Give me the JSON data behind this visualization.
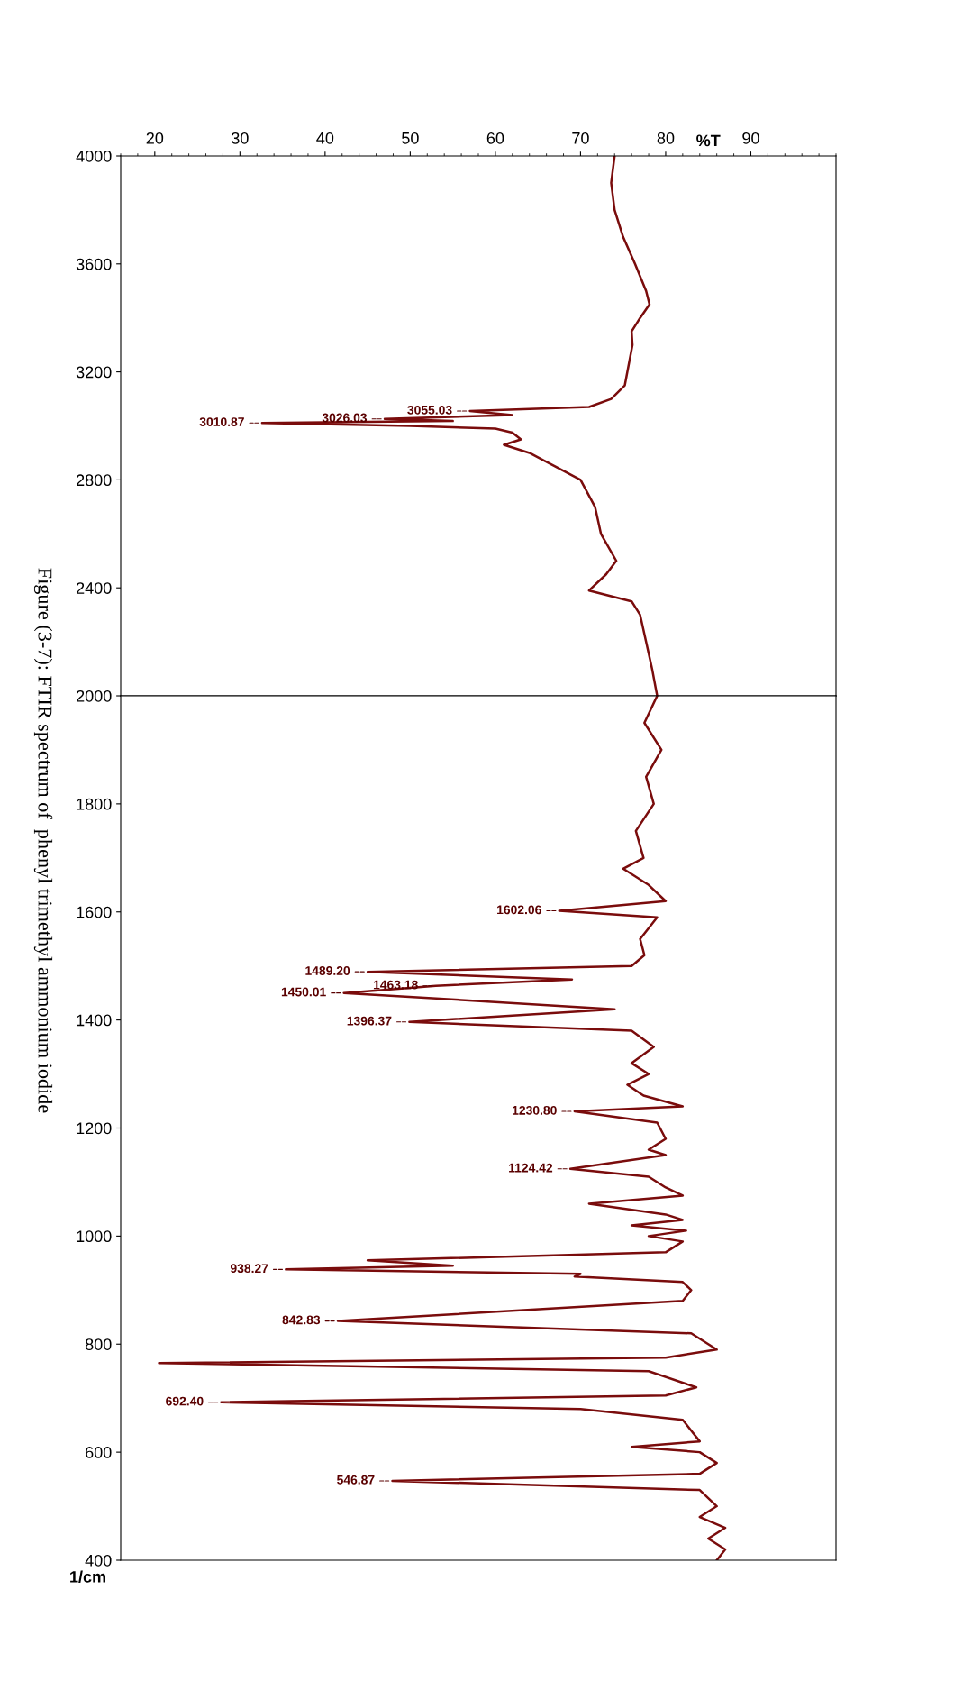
{
  "chart_data": [
    {
      "type": "line",
      "xlabel": "%T",
      "ylim": [
        2000,
        4000
      ],
      "yticks": [
        4000,
        3600,
        3200,
        2800,
        2400
      ],
      "xlim": [
        16,
        100
      ],
      "xticks": [
        20,
        30,
        40,
        50,
        60,
        70,
        80,
        90
      ],
      "grid": false,
      "legend": false,
      "marker": "none",
      "line_style": "solid",
      "series": [
        {
          "color": "#7a0c0c",
          "values": [
            4000,
            3900,
            3800,
            3700,
            3600,
            3500,
            3450,
            3400,
            3350,
            3300,
            3200,
            3150,
            3100,
            3070,
            3055.03,
            3040,
            3026.03,
            3018,
            3010.87,
            3000,
            2990,
            2975,
            2950,
            2930,
            2900,
            2850,
            2800,
            2700,
            2600,
            2500,
            2450,
            2390,
            2350,
            2300,
            2200,
            2100,
            2000
          ],
          "x": [
            74,
            73.6,
            74,
            75,
            76.4,
            77.7,
            78.1,
            77,
            76,
            76.1,
            75.5,
            75.2,
            73.6,
            71,
            57,
            62,
            47,
            55,
            32.6,
            50,
            60,
            62,
            63,
            61,
            64,
            67,
            70,
            71.7,
            72.4,
            74.2,
            73,
            71,
            76,
            77,
            77.7,
            78.4,
            79
          ]
        }
      ],
      "annotations": [
        {
          "text": "3055.03",
          "y": 3055.03,
          "x": 57
        },
        {
          "text": "3026.03",
          "y": 3026.03,
          "x": 47
        },
        {
          "text": "3010.87",
          "y": 3010.87,
          "x": 32.6
        },
        "Figure (3-7): FTIR spectrum of  phenyl trimethyl ammonium iodide"
      ]
    },
    {
      "type": "line",
      "ylabel": "1/cm",
      "ylim": [
        400,
        2000
      ],
      "yticks": [
        2000,
        1800,
        1600,
        1400,
        1200,
        1000,
        800,
        600,
        400
      ],
      "xlim": [
        16,
        100
      ],
      "tick_labels": "y",
      "grid": false,
      "legend": false,
      "marker": "none",
      "line_style": "solid",
      "series": [
        {
          "color": "#7a0c0c",
          "values": [
            2000,
            1950,
            1900,
            1850,
            1800,
            1750,
            1700,
            1680,
            1650,
            1620,
            1602.06,
            1590,
            1550,
            1520,
            1500,
            1489.2,
            1475,
            1463.18,
            1450.01,
            1420,
            1396.37,
            1380,
            1350,
            1320,
            1300,
            1280,
            1260,
            1240,
            1230.8,
            1210,
            1180,
            1160,
            1150,
            1124.42,
            1110,
            1090,
            1075,
            1060,
            1040,
            1030,
            1020,
            1010,
            1000,
            990,
            970,
            955,
            945,
            938.27,
            930,
            925,
            915,
            900,
            880,
            842.83,
            820,
            790,
            775,
            765,
            750,
            720,
            705,
            692.4,
            680,
            660,
            640,
            620,
            610,
            600,
            580,
            560,
            546.87,
            530,
            500,
            480,
            460,
            440,
            420,
            400
          ],
          "x": [
            79,
            77.5,
            79.5,
            77.7,
            78.6,
            76.5,
            77.4,
            75,
            78,
            80,
            67.5,
            79,
            77,
            77.5,
            76,
            45,
            69,
            53,
            42.2,
            74,
            49.9,
            76,
            78.6,
            76,
            78,
            75.5,
            77.4,
            82,
            69.3,
            79,
            80,
            78,
            80,
            68.8,
            78,
            80,
            82,
            71,
            80,
            82,
            76,
            82.4,
            78,
            82,
            80,
            45,
            55,
            35.4,
            70,
            69.3,
            82,
            83,
            82,
            41.5,
            83,
            86,
            80,
            20.5,
            78,
            83.6,
            80,
            27.8,
            70,
            82,
            83,
            84,
            76,
            84,
            86,
            84,
            47.9,
            84,
            86,
            84,
            87,
            85,
            87,
            86
          ]
        }
      ],
      "annotations": [
        {
          "text": "1602.06",
          "y": 1602.06,
          "x": 67.5
        },
        {
          "text": "1489.20",
          "y": 1489.2,
          "x": 45
        },
        {
          "text": "1463.18",
          "y": 1463.18,
          "x": 53
        },
        {
          "text": "1450.01",
          "y": 1450.01,
          "x": 42.2
        },
        {
          "text": "1396.37",
          "y": 1396.37,
          "x": 49.9
        },
        {
          "text": "1230.80",
          "y": 1230.8,
          "x": 69.3
        },
        {
          "text": "1124.42",
          "y": 1124.42,
          "x": 68.8
        },
        {
          "text": "938.27",
          "y": 938.27,
          "x": 35.4
        },
        {
          "text": "842.83",
          "y": 842.83,
          "x": 41.5
        },
        {
          "text": "692.40",
          "y": 692.4,
          "x": 27.8
        },
        {
          "text": "546.87",
          "y": 546.87,
          "x": 47.9
        }
      ]
    }
  ]
}
